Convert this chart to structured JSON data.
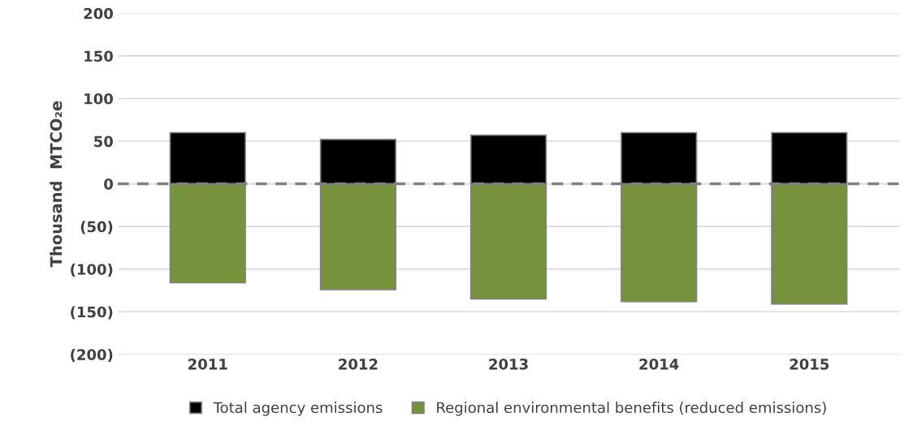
{
  "chart_data": {
    "type": "bar",
    "ylabel": "Thousand  MTCO₂e",
    "categories": [
      "2011",
      "2012",
      "2013",
      "2014",
      "2015"
    ],
    "series": [
      {
        "name": "Total agency emissions",
        "color": "#000000",
        "values": [
          60,
          52,
          57,
          60,
          60
        ]
      },
      {
        "name": "Regional environmental benefits (reduced emissions)",
        "color": "#77923c",
        "values": [
          -116,
          -124,
          -135,
          -138,
          -141
        ]
      }
    ],
    "stacked": true,
    "ylim": [
      -200,
      200
    ],
    "yticks": [
      {
        "value": -200,
        "label": "(200)"
      },
      {
        "value": -150,
        "label": "(150)"
      },
      {
        "value": -100,
        "label": "(100)"
      },
      {
        "value": -50,
        "label": "(50)"
      },
      0,
      50,
      100,
      150,
      200
    ],
    "ref_lines": [
      {
        "axis": "y",
        "value": 0,
        "color": "#808080",
        "line_style": "dashed"
      }
    ],
    "grid": "y",
    "legend": "bottom"
  }
}
